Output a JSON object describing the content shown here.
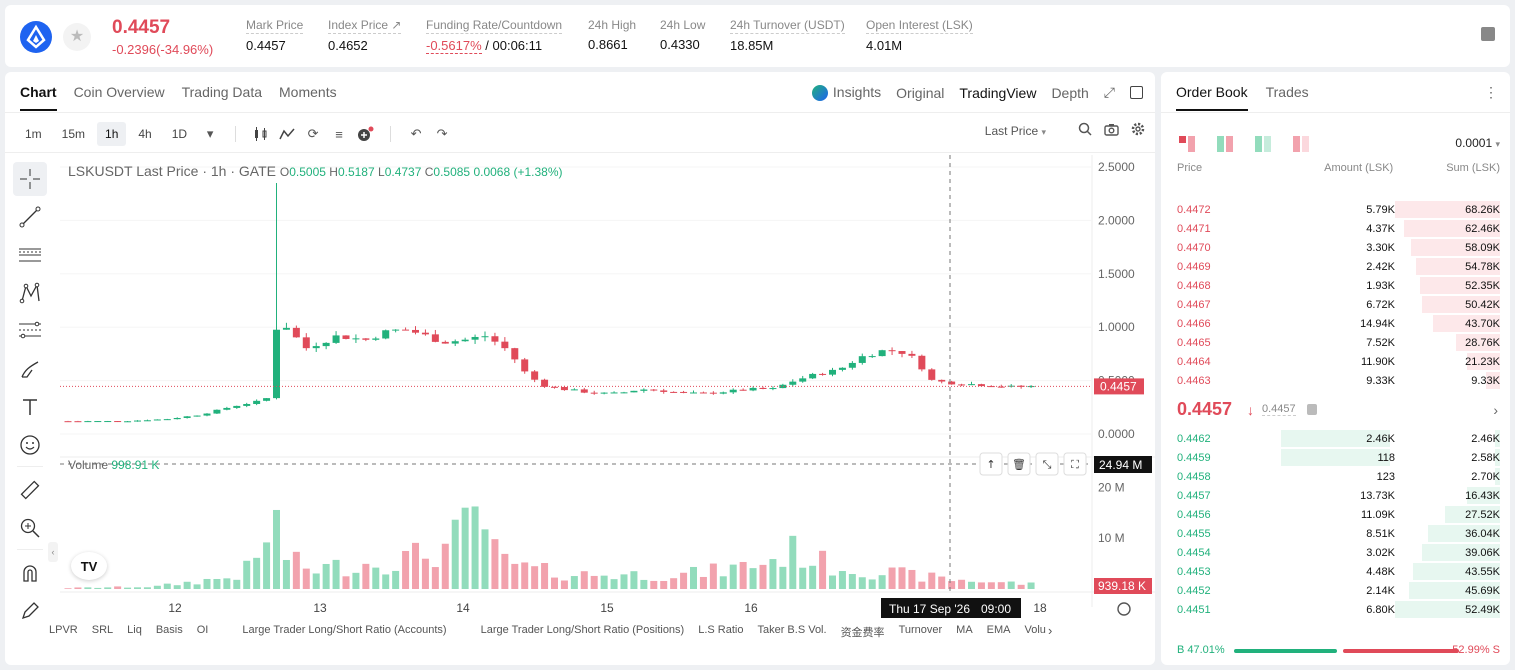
{
  "header": {
    "symbol_icon": "lisk-logo",
    "favorite_icon": "star-icon",
    "last_price": "0.4457",
    "change": "-0.2396(-34.96%)",
    "stats": [
      {
        "label": "Mark Price",
        "value": "0.4457"
      },
      {
        "label": "Index Price ↗",
        "value": "0.4652"
      },
      {
        "label": "Funding Rate/Countdown",
        "value_red": "-0.5617%",
        "value": " / 00:06:11"
      },
      {
        "label": "24h High",
        "value": "0.8661"
      },
      {
        "label": "24h Low",
        "value": "0.4330"
      },
      {
        "label": "24h Turnover (USDT)",
        "value": "18.85M"
      },
      {
        "label": "Open Interest (LSK)",
        "value": "4.01M"
      }
    ],
    "right_icon": "book-icon"
  },
  "chart_tabs": [
    "Chart",
    "Coin Overview",
    "Trading Data",
    "Moments"
  ],
  "view_tabs": {
    "insights": "Insights",
    "original": "Original",
    "tradingview": "TradingView",
    "depth": "Depth"
  },
  "timeframes": [
    "1m",
    "15m",
    "1h",
    "4h",
    "1D"
  ],
  "active_timeframe": "1h",
  "toolbar_right": {
    "price_type": "Last Price"
  },
  "legend": {
    "title": "LSKUSDT Last Price · 1h · GATE",
    "o_label": "O",
    "o": "0.5005",
    "h_label": "H",
    "h": "0.5187",
    "l_label": "L",
    "l": "0.4737",
    "c_label": "C",
    "c": "0.5085",
    "chg": "0.0068 (+1.38%)"
  },
  "volume_legend": {
    "label": "Volume",
    "value": "998.91 K"
  },
  "crosshair": {
    "date_label": "Thu 17 Sep '26",
    "time_label": "09:00",
    "volume_label": "24.94 M"
  },
  "last_price_tag": "0.4457",
  "last_volume_tag": "939.18 K",
  "tradingview_logo": "TV",
  "bottom_indicators": [
    "LPVR",
    "SRL",
    "Liq",
    "Basis",
    "OI",
    "Large Trader Long/Short Ratio (Accounts)",
    "Large Trader Long/Short Ratio (Positions)",
    "L.S Ratio",
    "Taker B.S Vol.",
    "资金费率",
    "Turnover",
    "MA",
    "EMA",
    "Volu"
  ],
  "colors": {
    "up": "#21b17c",
    "down": "#e04a59",
    "up_vol": "#92dcbc",
    "down_vol": "#f2a2ad"
  },
  "chart_data": {
    "type": "candlestick",
    "title": "LSKUSDT Last Price · 1h · GATE",
    "x_ticks": [
      "12",
      "13",
      "14",
      "15",
      "16",
      "18"
    ],
    "y_ticks": [
      "2.5000",
      "2.0000",
      "1.5000",
      "1.0000",
      "0.5000",
      "0.0000"
    ],
    "volume_ticks": [
      "20 M",
      "10 M"
    ],
    "ylim": [
      0,
      2.5
    ],
    "volume_ylim": [
      0,
      24
    ],
    "last_price": 0.4457,
    "price_keypoints": [
      [
        0,
        0.12
      ],
      [
        50,
        0.12
      ],
      [
        90,
        0.14
      ],
      [
        120,
        0.18
      ],
      [
        150,
        0.26
      ],
      [
        170,
        0.3
      ],
      [
        180,
        0.32
      ],
      [
        185,
        0.5
      ],
      [
        187,
        0.75
      ],
      [
        190,
        1.05
      ],
      [
        200,
        1.0
      ],
      [
        215,
        0.8
      ],
      [
        230,
        0.86
      ],
      [
        245,
        0.92
      ],
      [
        270,
        0.88
      ],
      [
        290,
        0.96
      ],
      [
        305,
        0.98
      ],
      [
        320,
        0.94
      ],
      [
        340,
        0.86
      ],
      [
        360,
        0.88
      ],
      [
        380,
        0.92
      ],
      [
        400,
        0.78
      ],
      [
        415,
        0.58
      ],
      [
        430,
        0.46
      ],
      [
        450,
        0.42
      ],
      [
        480,
        0.38
      ],
      [
        500,
        0.38
      ],
      [
        520,
        0.42
      ],
      [
        545,
        0.4
      ],
      [
        560,
        0.38
      ],
      [
        580,
        0.38
      ],
      [
        600,
        0.4
      ],
      [
        620,
        0.42
      ],
      [
        640,
        0.42
      ],
      [
        660,
        0.5
      ],
      [
        680,
        0.56
      ],
      [
        700,
        0.6
      ],
      [
        720,
        0.72
      ],
      [
        740,
        0.78
      ],
      [
        755,
        0.78
      ],
      [
        770,
        0.7
      ],
      [
        785,
        0.5
      ],
      [
        800,
        0.48
      ],
      [
        830,
        0.46
      ],
      [
        860,
        0.44
      ],
      [
        875,
        0.4457
      ]
    ],
    "spike": {
      "index": 186,
      "high": 2.35
    },
    "candle_count": 98,
    "volume_keypoints": [
      [
        0,
        0.2
      ],
      [
        80,
        0.5
      ],
      [
        150,
        2.5
      ],
      [
        170,
        5
      ],
      [
        180,
        10
      ],
      [
        185,
        24
      ],
      [
        190,
        12
      ],
      [
        200,
        6
      ],
      [
        220,
        4
      ],
      [
        260,
        5
      ],
      [
        300,
        6
      ],
      [
        340,
        8
      ],
      [
        360,
        12
      ],
      [
        375,
        16
      ],
      [
        390,
        6
      ],
      [
        420,
        4
      ],
      [
        460,
        3
      ],
      [
        520,
        3
      ],
      [
        560,
        3
      ],
      [
        600,
        4
      ],
      [
        640,
        6
      ],
      [
        660,
        8
      ],
      [
        690,
        5
      ],
      [
        720,
        4
      ],
      [
        760,
        3
      ],
      [
        800,
        2
      ],
      [
        840,
        1.5
      ],
      [
        875,
        1
      ]
    ]
  },
  "orderbook": {
    "tabs": [
      "Order Book",
      "Trades"
    ],
    "precision": "0.0001",
    "headers": [
      "Price",
      "Amount (LSK)",
      "Sum (LSK)"
    ],
    "asks": [
      {
        "p": "0.4472",
        "a": "5.79K",
        "s": "68.26K",
        "fill": 1.0
      },
      {
        "p": "0.4471",
        "a": "4.37K",
        "s": "62.46K",
        "fill": 0.915
      },
      {
        "p": "0.4470",
        "a": "3.30K",
        "s": "58.09K",
        "fill": 0.851
      },
      {
        "p": "0.4469",
        "a": "2.42K",
        "s": "54.78K",
        "fill": 0.803
      },
      {
        "p": "0.4468",
        "a": "1.93K",
        "s": "52.35K",
        "fill": 0.767
      },
      {
        "p": "0.4467",
        "a": "6.72K",
        "s": "50.42K",
        "fill": 0.739
      },
      {
        "p": "0.4466",
        "a": "14.94K",
        "s": "43.70K",
        "fill": 0.64
      },
      {
        "p": "0.4465",
        "a": "7.52K",
        "s": "28.76K",
        "fill": 0.421
      },
      {
        "p": "0.4464",
        "a": "11.90K",
        "s": "21.23K",
        "fill": 0.311
      },
      {
        "p": "0.4463",
        "a": "9.33K",
        "s": "9.33K",
        "fill": 0.137
      }
    ],
    "mid": {
      "price": "0.4457",
      "arrow": "↓",
      "mark": "0.4457"
    },
    "bids": [
      {
        "p": "0.4462",
        "a": "2.46K",
        "s": "2.46K",
        "fill": 0.047,
        "afill": 0.95
      },
      {
        "p": "0.4459",
        "a": "118",
        "s": "2.58K",
        "fill": 0.049,
        "afill": 0.95
      },
      {
        "p": "0.4458",
        "a": "123",
        "s": "2.70K",
        "fill": 0.051,
        "afill": 0
      },
      {
        "p": "0.4457",
        "a": "13.73K",
        "s": "16.43K",
        "fill": 0.313,
        "afill": 0
      },
      {
        "p": "0.4456",
        "a": "11.09K",
        "s": "27.52K",
        "fill": 0.524,
        "afill": 0
      },
      {
        "p": "0.4455",
        "a": "8.51K",
        "s": "36.04K",
        "fill": 0.687,
        "afill": 0
      },
      {
        "p": "0.4454",
        "a": "3.02K",
        "s": "39.06K",
        "fill": 0.744,
        "afill": 0
      },
      {
        "p": "0.4453",
        "a": "4.48K",
        "s": "43.55K",
        "fill": 0.83,
        "afill": 0
      },
      {
        "p": "0.4452",
        "a": "2.14K",
        "s": "45.69K",
        "fill": 0.871,
        "afill": 0
      },
      {
        "p": "0.4451",
        "a": "6.80K",
        "s": "52.49K",
        "fill": 1.0,
        "afill": 0
      }
    ],
    "buy_ratio": "B 47.01%",
    "sell_ratio": "52.99% S",
    "buy_fraction": 0.4701
  }
}
